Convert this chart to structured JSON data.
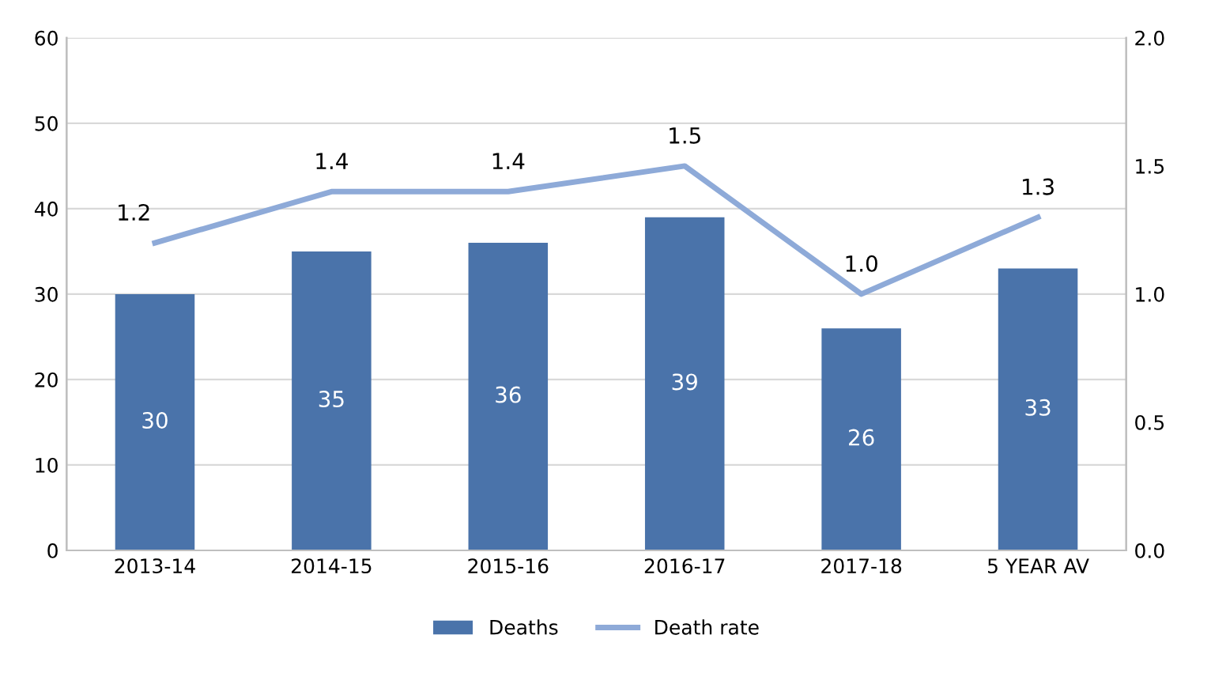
{
  "chart_data": {
    "type": "bar",
    "categories": [
      "2013-14",
      "2014-15",
      "2015-16",
      "2016-17",
      "2017-18",
      "5 YEAR AV"
    ],
    "series": [
      {
        "name": "Deaths",
        "color": "#4a73aa",
        "values": [
          30,
          35,
          36,
          39,
          26,
          33
        ]
      },
      {
        "name": "Death rate",
        "type": "line",
        "axis": "y2",
        "color": "#8eaad8",
        "values": [
          1.2,
          1.4,
          1.4,
          1.5,
          1.0,
          1.3
        ],
        "value_labels": [
          "1.2",
          "1.4",
          "1.4",
          "1.5",
          "1.0",
          "1.3"
        ]
      }
    ],
    "data_labels": true,
    "ylim": [
      0,
      60
    ],
    "yticks": [
      0,
      10,
      20,
      30,
      40,
      50,
      60
    ],
    "y2lim": [
      0,
      2.0
    ],
    "y2ticks": [
      {
        "value": 0,
        "label": "0.0"
      },
      {
        "value": 0.5,
        "label": "0.5"
      },
      {
        "value": 1.0,
        "label": "1.0"
      },
      {
        "value": 1.5,
        "label": "1.5"
      },
      {
        "value": 2.0,
        "label": "2.0"
      }
    ],
    "grid": "y",
    "legend": "bottom",
    "marker": "none",
    "line_style": "solid"
  }
}
